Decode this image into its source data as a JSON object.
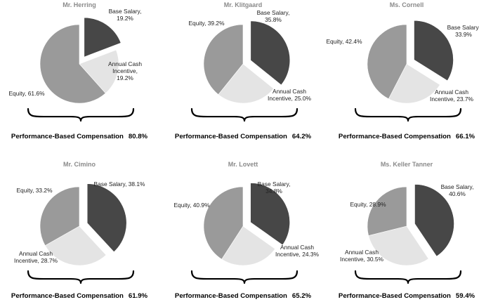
{
  "colors": {
    "base_salary": "#474747",
    "annual_cash_incentive": "#e4e4e4",
    "equity": "#9a9a9a",
    "title": "#8a8a8a"
  },
  "chart_data": [
    {
      "type": "pie",
      "title": "Mr. Herring",
      "slices": [
        {
          "key": "base",
          "label_lines": [
            "Base Salary,",
            "19.2%"
          ],
          "value": 19.2,
          "exploded": true
        },
        {
          "key": "aci",
          "label_lines": [
            "Annual Cash",
            "Incentive,",
            "19.2%"
          ],
          "value": 19.2,
          "exploded": false
        },
        {
          "key": "equity",
          "label_lines": [
            "Equity, 61.6%"
          ],
          "value": 61.6,
          "exploded": false
        }
      ],
      "performance_label": "Performance-Based Compensation",
      "performance_value": "80.8%"
    },
    {
      "type": "pie",
      "title": "Mr. Klitgaard",
      "slices": [
        {
          "key": "base",
          "label_lines": [
            "Base Salary,",
            "35.8%"
          ],
          "value": 35.8,
          "exploded": true
        },
        {
          "key": "aci",
          "label_lines": [
            "Annual Cash",
            "Incentive, 25.0%"
          ],
          "value": 25.0,
          "exploded": false
        },
        {
          "key": "equity",
          "label_lines": [
            "Equity, 39.2%"
          ],
          "value": 39.2,
          "exploded": false
        }
      ],
      "performance_label": "Performance-Based Compensation",
      "performance_value": "64.2%"
    },
    {
      "type": "pie",
      "title": "Ms. Cornell",
      "slices": [
        {
          "key": "base",
          "label_lines": [
            "Base Salary,",
            "33.9%"
          ],
          "value": 33.9,
          "exploded": true
        },
        {
          "key": "aci",
          "label_lines": [
            "Annual Cash",
            "Incentive, 23.7%"
          ],
          "value": 23.7,
          "exploded": false
        },
        {
          "key": "equity",
          "label_lines": [
            "Equity, 42.4%"
          ],
          "value": 42.4,
          "exploded": false
        }
      ],
      "performance_label": "Performance-Based Compensation",
      "performance_value": "66.1%"
    },
    {
      "type": "pie",
      "title": "Mr. Cimino",
      "slices": [
        {
          "key": "base",
          "label_lines": [
            "Base Salary, 38.1%"
          ],
          "value": 38.1,
          "exploded": true
        },
        {
          "key": "aci",
          "label_lines": [
            "Annual Cash",
            "Incentive, 28.7%"
          ],
          "value": 28.7,
          "exploded": false
        },
        {
          "key": "equity",
          "label_lines": [
            "Equity, 33.2%"
          ],
          "value": 33.2,
          "exploded": false
        }
      ],
      "performance_label": "Performance-Based Compensation",
      "performance_value": "61.9%"
    },
    {
      "type": "pie",
      "title": "Mr. Lovett",
      "slices": [
        {
          "key": "base",
          "label_lines": [
            "Base Salary,",
            "34.8%"
          ],
          "value": 34.8,
          "exploded": true
        },
        {
          "key": "aci",
          "label_lines": [
            "Annual Cash",
            "Incentive, 24.3%"
          ],
          "value": 24.3,
          "exploded": false
        },
        {
          "key": "equity",
          "label_lines": [
            "Equity, 40.9%"
          ],
          "value": 40.9,
          "exploded": false
        }
      ],
      "performance_label": "Performance-Based Compensation",
      "performance_value": "65.2%"
    },
    {
      "type": "pie",
      "title": "Ms. Keller Tanner",
      "slices": [
        {
          "key": "base",
          "label_lines": [
            "Base Salary,",
            "40.6%"
          ],
          "value": 40.6,
          "exploded": true
        },
        {
          "key": "aci",
          "label_lines": [
            "Annual Cash",
            "Incentive, 30.5%"
          ],
          "value": 30.5,
          "exploded": false
        },
        {
          "key": "equity",
          "label_lines": [
            "Equity, 28.9%"
          ],
          "value": 28.9,
          "exploded": false
        }
      ],
      "performance_label": "Performance-Based Compensation",
      "performance_value": "59.4%"
    }
  ]
}
